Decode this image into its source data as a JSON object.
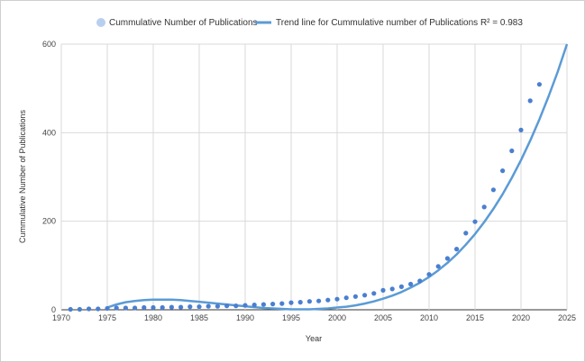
{
  "chart_data": {
    "type": "scatter",
    "xlabel": "Year",
    "ylabel": "Cummulative Number of Publications",
    "xlim": [
      1970,
      2025
    ],
    "ylim": [
      0,
      600
    ],
    "x_ticks": [
      "1970",
      "1975",
      "1980",
      "1985",
      "1990",
      "1995",
      "2000",
      "2005",
      "2010",
      "2015",
      "2020",
      "2025"
    ],
    "y_ticks": [
      "0",
      "200",
      "400",
      "600"
    ],
    "legend": {
      "position": "top",
      "scatter_label": "Cummulative Number of Publications",
      "trend_label": "Trend line for Cummulative number of Publications R² = 0.983"
    },
    "series": [
      {
        "name": "Cummulative Number of Publications",
        "color": "#4a7fd0",
        "x": [
          1971,
          1972,
          1973,
          1974,
          1975,
          1976,
          1977,
          1978,
          1979,
          1980,
          1981,
          1982,
          1983,
          1984,
          1985,
          1986,
          1987,
          1988,
          1989,
          1990,
          1991,
          1992,
          1993,
          1994,
          1995,
          1996,
          1997,
          1998,
          1999,
          2000,
          2001,
          2002,
          2003,
          2004,
          2005,
          2006,
          2007,
          2008,
          2009,
          2010,
          2011,
          2012,
          2013,
          2014,
          2015,
          2016,
          2017,
          2018,
          2019,
          2020,
          2021,
          2022
        ],
        "values": [
          1,
          1,
          2,
          2,
          3,
          4,
          4,
          4,
          5,
          5,
          5,
          6,
          6,
          7,
          7,
          8,
          8,
          9,
          9,
          10,
          11,
          12,
          13,
          14,
          16,
          17,
          19,
          20,
          22,
          24,
          27,
          30,
          33,
          37,
          44,
          47,
          52,
          58,
          65,
          80,
          98,
          116,
          137,
          173,
          199,
          232,
          271,
          314,
          359,
          406,
          472,
          509
        ]
      }
    ],
    "trendline": {
      "name": "Trend line for Cummulative number of Publications R² = 0.983",
      "color": "#5b9bd5",
      "type": "polynomial",
      "points": [
        [
          1975,
          5
        ],
        [
          1976,
          12
        ],
        [
          1977,
          17
        ],
        [
          1978,
          20
        ],
        [
          1979,
          22
        ],
        [
          1980,
          23
        ],
        [
          1981,
          23
        ],
        [
          1982,
          23
        ],
        [
          1983,
          22
        ],
        [
          1984,
          20
        ],
        [
          1985,
          18
        ],
        [
          1986,
          16
        ],
        [
          1987,
          14
        ],
        [
          1988,
          12
        ],
        [
          1989,
          10
        ],
        [
          1990,
          8
        ],
        [
          1991,
          6
        ],
        [
          1992,
          4
        ],
        [
          1993,
          3
        ],
        [
          1994,
          2
        ],
        [
          1995,
          1
        ],
        [
          1996,
          1
        ],
        [
          1997,
          1
        ],
        [
          1998,
          2
        ],
        [
          1999,
          3
        ],
        [
          2000,
          5
        ],
        [
          2001,
          7
        ],
        [
          2002,
          10
        ],
        [
          2003,
          14
        ],
        [
          2004,
          19
        ],
        [
          2005,
          25
        ],
        [
          2006,
          32
        ],
        [
          2007,
          40
        ],
        [
          2008,
          50
        ],
        [
          2009,
          61
        ],
        [
          2010,
          74
        ],
        [
          2011,
          89
        ],
        [
          2012,
          106
        ],
        [
          2013,
          125
        ],
        [
          2014,
          147
        ],
        [
          2015,
          171
        ],
        [
          2016,
          198
        ],
        [
          2017,
          228
        ],
        [
          2018,
          261
        ],
        [
          2019,
          298
        ],
        [
          2020,
          338
        ],
        [
          2021,
          382
        ],
        [
          2022,
          430
        ],
        [
          2023,
          482
        ],
        [
          2024,
          538
        ],
        [
          2025,
          600
        ]
      ]
    }
  }
}
